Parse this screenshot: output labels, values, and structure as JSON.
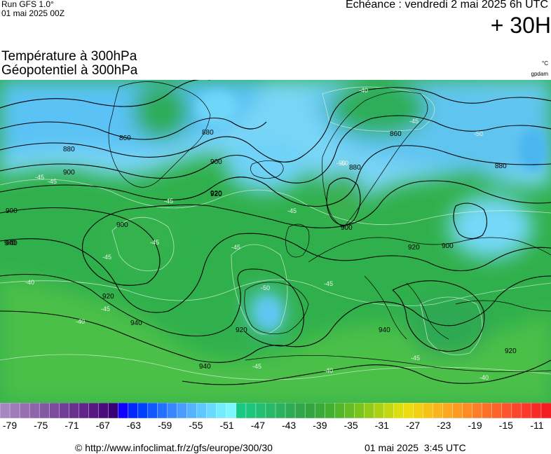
{
  "header": {
    "run_model": "Run GFS 1.0°",
    "run_date": "01 mai 2025 00Z",
    "echeance": "Echéance : vendredi 2 mai 2025 6h UTC",
    "horizon": "+ 30H"
  },
  "parameters": {
    "line1": "Température à 300hPa",
    "line2": "Géopotentiel à 300hPa",
    "unit_temperature": "°C",
    "unit_geopotential": "gpdam"
  },
  "map": {
    "description_colors": {
      "land_contour": "#000000",
      "geopotential_contour": "#000000",
      "isotherm_contour": "#d9f0d9"
    },
    "geopotential_labels": [
      "860",
      "880",
      "900",
      "920",
      "940",
      "880",
      "900",
      "920",
      "880",
      "860",
      "900",
      "920",
      "940",
      "920",
      "940",
      "900",
      "880",
      "900",
      "920",
      "940",
      "940",
      "920",
      "900"
    ],
    "temperature_labels": [
      "-40",
      "-45",
      "-50",
      "-45",
      "-45",
      "-50",
      "-45",
      "-50",
      "-45",
      "-45",
      "-40",
      "-40",
      "-45",
      "-45",
      "-45",
      "-50",
      "-45",
      "-45",
      "-40",
      "-45",
      "-40"
    ]
  },
  "color_scale": {
    "colors": [
      "#a787bf",
      "#9f7cb9",
      "#9770b2",
      "#8e64ab",
      "#8558a4",
      "#7c4b9d",
      "#733e96",
      "#6a318f",
      "#612488",
      "#581781",
      "#4a0c7a",
      "#3a0075",
      "#1000ff",
      "#0028ff",
      "#0040ff",
      "#1258ff",
      "#2470ff",
      "#3a86ff",
      "#4a9cff",
      "#55b2ff",
      "#5fc6ff",
      "#69d9ff",
      "#73ecff",
      "#7df7ff",
      "#19c884",
      "#1fc47c",
      "#23be72",
      "#27b868",
      "#2bb25e",
      "#2eab54",
      "#30a54a",
      "#33a440",
      "#37aa38",
      "#41b030",
      "#52b72a",
      "#65bd24",
      "#7ac41e",
      "#92ca1a",
      "#aad116",
      "#c3d712",
      "#dcde0f",
      "#eedb10",
      "#f4cf14",
      "#f7c217",
      "#f9b51b",
      "#fba71f",
      "#fc9a22",
      "#fd8c25",
      "#fd7e28",
      "#fd702a",
      "#fd622b",
      "#fd542b",
      "#fc462b",
      "#fb3829",
      "#f92a25",
      "#f51c1f"
    ],
    "tick_labels": [
      "-79",
      "-75",
      "-71",
      "-67",
      "-63",
      "-59",
      "-55",
      "-51",
      "-47",
      "-43",
      "-39",
      "-35",
      "-31",
      "-27",
      "-23",
      "-19",
      "-15",
      "-11"
    ]
  },
  "footer": {
    "source": "© http://www.infoclimat.fr/z/gfs/europe/300/30",
    "timestamp": "01 mai 2025  3:45 UTC"
  }
}
